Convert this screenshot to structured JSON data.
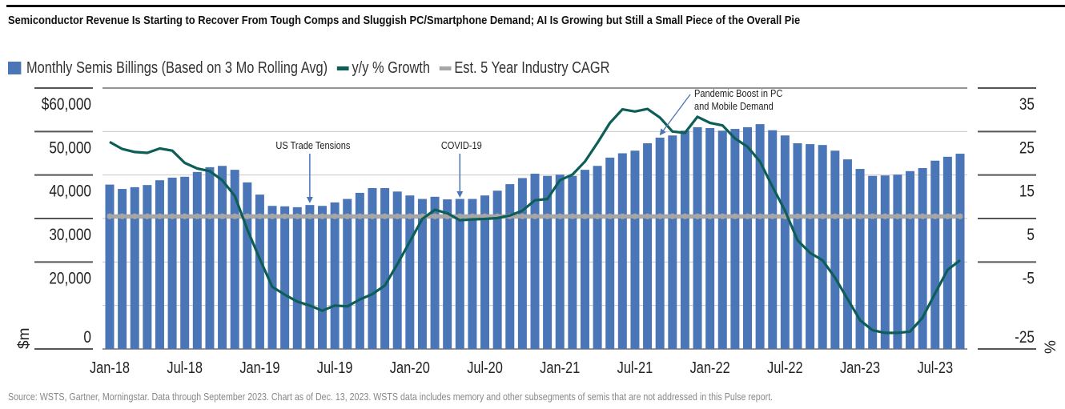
{
  "header": {
    "title": "Semiconductor Revenue Is Starting to Recover From Tough Comps and Sluggish PC/Smartphone Demand; AI Is Growing but Still a Small Piece of the Overall Pie"
  },
  "footer": {
    "source": "Source: WSTS, Gartner, Morningstar. Data through September 2023. Chart as of Dec. 13, 2023. WSTS data includes memory and other subsegments of semis that are not addressed in this Pulse report."
  },
  "colors": {
    "bars": "#4a76b8",
    "growth_line": "#0e5e58",
    "cagr_line": "#a6a6a6",
    "annotation_arrow": "#4a76b8"
  },
  "chart_data": {
    "type": "bar",
    "title": "Semiconductor Revenue Is Starting to Recover From Tough Comps and Sluggish PC/Smartphone Demand; AI Is Growing but Still a Small Piece of the Overall Pie",
    "xlabel": "",
    "ylabel": "$m",
    "y2label": "%",
    "ylim": [
      0,
      60000
    ],
    "y2lim": [
      -25,
      35
    ],
    "grid": true,
    "legend_position": "top-left",
    "legend": [
      {
        "name": "Monthly Semis Billings (Based on 3 Mo Rolling Avg)",
        "type": "bar"
      },
      {
        "name": "y/y % Growth",
        "type": "line"
      },
      {
        "name": "Est. 5 Year Industry CAGR",
        "type": "line"
      }
    ],
    "left_ticks": [
      {
        "value": 60000,
        "label": "$60,000"
      },
      {
        "value": 50000,
        "label": "50,000"
      },
      {
        "value": 40000,
        "label": "40,000"
      },
      {
        "value": 30000,
        "label": "30,000"
      },
      {
        "value": 20000,
        "label": "20,000"
      },
      {
        "value": 0,
        "label": "0"
      }
    ],
    "right_ticks": [
      {
        "value": 35,
        "label": "35"
      },
      {
        "value": 25,
        "label": "25"
      },
      {
        "value": 15,
        "label": "15"
      },
      {
        "value": 5,
        "label": "5"
      },
      {
        "value": -5,
        "label": "-5"
      },
      {
        "value": -25,
        "label": "-25"
      }
    ],
    "x_tick_labels": [
      {
        "index": 0,
        "label": "Jan-18"
      },
      {
        "index": 6,
        "label": "Jul-18"
      },
      {
        "index": 12,
        "label": "Jan-19"
      },
      {
        "index": 18,
        "label": "Jul-19"
      },
      {
        "index": 24,
        "label": "Jan-20"
      },
      {
        "index": 30,
        "label": "Jul-20"
      },
      {
        "index": 36,
        "label": "Jan-21"
      },
      {
        "index": 42,
        "label": "Jul-21"
      },
      {
        "index": 48,
        "label": "Jan-22"
      },
      {
        "index": 54,
        "label": "Jul-22"
      },
      {
        "index": 60,
        "label": "Jan-23"
      },
      {
        "index": 66,
        "label": "Jul-23"
      }
    ],
    "categories": [
      "Jan-18",
      "Feb-18",
      "Mar-18",
      "Apr-18",
      "May-18",
      "Jun-18",
      "Jul-18",
      "Aug-18",
      "Sep-18",
      "Oct-18",
      "Nov-18",
      "Dec-18",
      "Jan-19",
      "Feb-19",
      "Mar-19",
      "Apr-19",
      "May-19",
      "Jun-19",
      "Jul-19",
      "Aug-19",
      "Sep-19",
      "Oct-19",
      "Nov-19",
      "Dec-19",
      "Jan-20",
      "Feb-20",
      "Mar-20",
      "Apr-20",
      "May-20",
      "Jun-20",
      "Jul-20",
      "Aug-20",
      "Sep-20",
      "Oct-20",
      "Nov-20",
      "Dec-20",
      "Jan-21",
      "Feb-21",
      "Mar-21",
      "Apr-21",
      "May-21",
      "Jun-21",
      "Jul-21",
      "Aug-21",
      "Sep-21",
      "Oct-21",
      "Nov-21",
      "Dec-21",
      "Jan-22",
      "Feb-22",
      "Mar-22",
      "Apr-22",
      "May-22",
      "Jun-22",
      "Jul-22",
      "Aug-22",
      "Sep-22",
      "Oct-22",
      "Nov-22",
      "Dec-22",
      "Jan-23",
      "Feb-23",
      "Mar-23",
      "Apr-23",
      "May-23",
      "Jun-23",
      "Jul-23",
      "Aug-23",
      "Sep-23"
    ],
    "series": [
      {
        "name": "Monthly Semis Billings (Based on 3 Mo Rolling Avg)",
        "axis": "left",
        "type": "bar",
        "values": [
          37800,
          36800,
          37200,
          37700,
          38800,
          39400,
          39600,
          40700,
          41800,
          42100,
          41200,
          38300,
          35500,
          32900,
          32800,
          32600,
          33100,
          32900,
          33700,
          34500,
          35900,
          37000,
          37000,
          36200,
          35300,
          34500,
          35000,
          34400,
          34500,
          34500,
          35300,
          36400,
          37900,
          39300,
          40300,
          39800,
          40100,
          39800,
          41200,
          42100,
          44000,
          45000,
          45600,
          47300,
          48600,
          49100,
          50200,
          51000,
          50800,
          50200,
          50600,
          51000,
          51700,
          50300,
          49100,
          47300,
          47100,
          46900,
          45600,
          43600,
          41400,
          39800,
          39900,
          40100,
          40900,
          41600,
          43300,
          44200,
          44900
        ]
      },
      {
        "name": "y/y % Growth",
        "axis": "right",
        "type": "line",
        "values": [
          22.6,
          21.0,
          20.3,
          20.1,
          21.1,
          20.6,
          17.8,
          16.5,
          15.9,
          13.8,
          10.2,
          2.5,
          -4.3,
          -10.7,
          -12.5,
          -14.1,
          -15.0,
          -16.2,
          -15.0,
          -15.2,
          -13.6,
          -12.4,
          -10.4,
          -5.5,
          -0.3,
          4.9,
          7.0,
          6.2,
          4.6,
          4.8,
          4.9,
          5.1,
          5.7,
          6.8,
          9.2,
          9.5,
          13.8,
          15.1,
          18.1,
          22.4,
          27.0,
          30.1,
          29.6,
          30.2,
          28.2,
          25.0,
          24.7,
          28.4,
          27.0,
          26.4,
          23.4,
          21.5,
          18.1,
          12.3,
          6.8,
          0.0,
          -2.9,
          -4.6,
          -8.6,
          -13.5,
          -18.4,
          -20.7,
          -21.3,
          -21.3,
          -21.0,
          -17.8,
          -12.2,
          -6.8,
          -4.6
        ]
      },
      {
        "name": "Est. 5 Year Industry CAGR",
        "axis": "right",
        "type": "line",
        "constant": 5.5
      }
    ],
    "annotations": [
      {
        "text": "US Trade Tensions",
        "index": 16
      },
      {
        "text": "COVID-19",
        "index": 28
      },
      {
        "text": "Pandemic Boost in PC and Mobile Demand",
        "lines": [
          "Pandemic Boost in PC",
          "and Mobile Demand"
        ],
        "index": 44
      }
    ]
  }
}
